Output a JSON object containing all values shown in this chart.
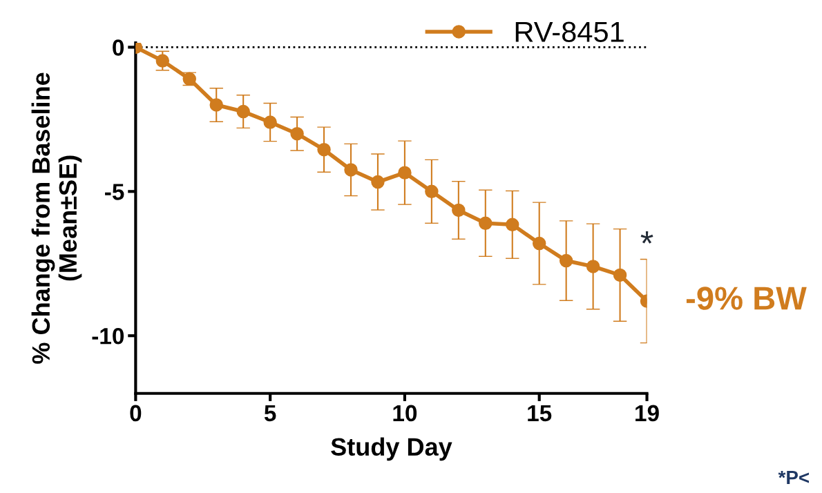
{
  "chart_data": {
    "type": "line",
    "xlabel": "Study Day",
    "ylabel": "% Change from Baseline\n(Mean±SE)",
    "x": [
      0,
      1,
      2,
      3,
      4,
      5,
      6,
      7,
      8,
      9,
      10,
      11,
      12,
      13,
      14,
      15,
      16,
      17,
      18,
      19
    ],
    "series": [
      {
        "name": "RV-8451",
        "color": "#d07c1e",
        "values": [
          0,
          -0.47,
          -1.1,
          -2.0,
          -2.23,
          -2.6,
          -3.0,
          -3.55,
          -4.25,
          -4.67,
          -4.35,
          -5.0,
          -5.65,
          -6.1,
          -6.15,
          -6.8,
          -7.4,
          -7.6,
          -7.9,
          -8.8
        ],
        "errors": [
          null,
          0.33,
          0.22,
          0.58,
          0.57,
          0.66,
          0.58,
          0.78,
          0.9,
          0.97,
          1.1,
          1.1,
          1.0,
          1.15,
          1.17,
          1.42,
          1.38,
          1.48,
          1.6,
          1.45
        ]
      }
    ],
    "xlim": [
      0,
      19
    ],
    "xticks": [
      0,
      5,
      10,
      15,
      19
    ],
    "ylim": [
      -12,
      0.15
    ],
    "yticks": [
      {
        "value": 0,
        "label": "0"
      },
      {
        "value": -5,
        "label": "-5"
      },
      {
        "value": -10,
        "label": "-10"
      }
    ],
    "ref_lines": [
      {
        "axis": "y",
        "value": 0,
        "color": "#000000",
        "line_style": "dotted"
      }
    ],
    "annotations": [
      "*",
      {
        "text": "-9% BW",
        "x": 19,
        "y": -8.8
      },
      "*P<"
    ],
    "marker": "circle",
    "line_style": "solid",
    "legend": "top",
    "grid": false
  }
}
